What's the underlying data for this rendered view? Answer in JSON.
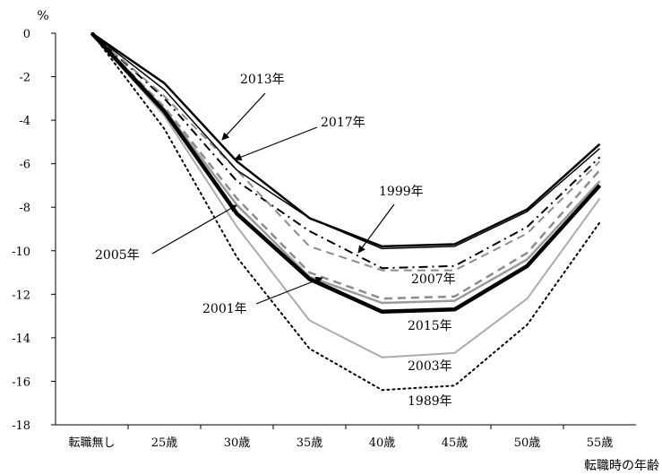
{
  "chart_data": {
    "type": "line",
    "title": "",
    "ylabel": "%",
    "xlabel": "転職時の年齢",
    "categories": [
      "転職無し",
      "25歳",
      "30歳",
      "35歳",
      "40歳",
      "45歳",
      "50歳",
      "55歳"
    ],
    "yticks": [
      "0",
      "-2",
      "-4",
      "-6",
      "-8",
      "-10",
      "-12",
      "-14",
      "-16",
      "-18"
    ],
    "ylim": [
      -18,
      0
    ],
    "grid": false,
    "legend": "inline labels",
    "series": [
      {
        "name": "1989年",
        "values": [
          0,
          -4.4,
          -10.3,
          -14.5,
          -16.4,
          -16.2,
          -13.4,
          -8.7
        ],
        "color": "#000000",
        "dash": "dotted",
        "width": 2
      },
      {
        "name": "1999年",
        "values": [
          0,
          -3.0,
          -6.8,
          -9.1,
          -10.8,
          -10.7,
          -8.9,
          -5.7
        ],
        "color": "#000000",
        "dash": "dashdot",
        "width": 2
      },
      {
        "name": "2001年",
        "values": [
          0,
          -3.5,
          -7.9,
          -11.2,
          -12.4,
          -12.3,
          -10.4,
          -6.8
        ],
        "color": "#9a9a9a",
        "dash": "solid",
        "width": 2.5
      },
      {
        "name": "2003年",
        "values": [
          0,
          -3.8,
          -8.9,
          -13.2,
          -14.9,
          -14.7,
          -12.2,
          -7.6
        ],
        "color": "#ababab",
        "dash": "solid",
        "width": 2
      },
      {
        "name": "2005年",
        "values": [
          0,
          -3.4,
          -7.6,
          -11.0,
          -12.2,
          -12.1,
          -10.1,
          -6.3
        ],
        "color": "#8c8c8c",
        "dash": "dashed",
        "width": 2.5
      },
      {
        "name": "2007年",
        "values": [
          0,
          -2.9,
          -6.3,
          -9.8,
          -10.9,
          -10.9,
          -9.2,
          -5.9
        ],
        "color": "#8c8c8c",
        "dash": "dashed",
        "width": 2
      },
      {
        "name": "2013年",
        "values": [
          0,
          -2.3,
          -5.9,
          -8.5,
          -9.8,
          -9.7,
          -8.1,
          -5.1
        ],
        "color": "#000000",
        "dash": "solid",
        "width": 2.5
      },
      {
        "name": "2015年",
        "values": [
          0,
          -3.6,
          -8.3,
          -11.3,
          -12.8,
          -12.7,
          -10.7,
          -7.0
        ],
        "color": "#000000",
        "dash": "solid",
        "width": 4.5
      },
      {
        "name": "2017年",
        "values": [
          0,
          -2.6,
          -6.3,
          -8.5,
          -9.9,
          -9.8,
          -8.2,
          -5.3
        ],
        "color": "#000000",
        "dash": "solid",
        "width": 1.5
      }
    ],
    "annotations": [
      {
        "text": "2013年",
        "arrow": true,
        "target": [
          2.5,
          -4.9
        ]
      },
      {
        "text": "2017年",
        "arrow": true,
        "target": [
          2.3,
          -6.0
        ]
      },
      {
        "text": "1999年",
        "arrow": true,
        "target": [
          4.1,
          -10.2
        ]
      },
      {
        "text": "2005年",
        "arrow": true,
        "target": [
          2.45,
          -7.6
        ]
      },
      {
        "text": "2007年",
        "arrow": false
      },
      {
        "text": "2001年",
        "arrow": true,
        "target": [
          3.6,
          -11.5
        ]
      },
      {
        "text": "2015年",
        "arrow": false
      },
      {
        "text": "2003年",
        "arrow": false
      },
      {
        "text": "1989年",
        "arrow": false
      }
    ]
  }
}
